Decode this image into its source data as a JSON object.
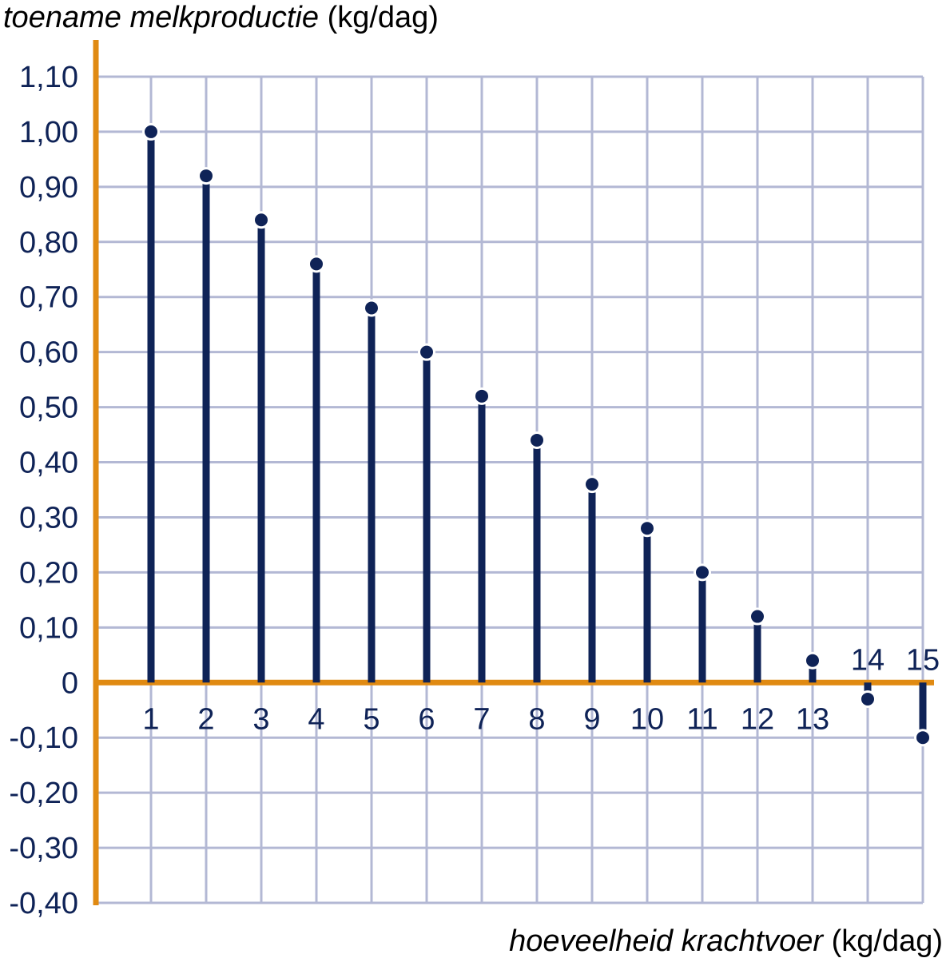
{
  "chart_data": {
    "type": "stem",
    "ylabel_italic": "toename melkproductie",
    "ylabel_unit": "(kg/dag)",
    "xlabel_italic": "hoeveelheid krachtvoer",
    "xlabel_unit": "(kg/dag)",
    "x": [
      1,
      2,
      3,
      4,
      5,
      6,
      7,
      8,
      9,
      10,
      11,
      12,
      13,
      14,
      15
    ],
    "values": [
      1.0,
      0.92,
      0.84,
      0.76,
      0.68,
      0.6,
      0.52,
      0.44,
      0.36,
      0.28,
      0.2,
      0.12,
      0.04,
      -0.03,
      -0.1
    ],
    "xlim": [
      0,
      15
    ],
    "ylim": [
      -0.4,
      1.1
    ],
    "y_ticks": [
      1.1,
      1.0,
      0.9,
      0.8,
      0.7,
      0.6,
      0.5,
      0.4,
      0.3,
      0.2,
      0.1,
      0,
      -0.1,
      -0.2,
      -0.3,
      -0.4
    ],
    "y_tick_labels": [
      "1,10",
      "1,00",
      "0,90",
      "0,80",
      "0,70",
      "0,60",
      "0,50",
      "0,40",
      "0,30",
      "0,20",
      "0,10",
      "0",
      "-0,10",
      "-0,20",
      "-0,30",
      "-0,40"
    ],
    "x_tick_labels": [
      "1",
      "2",
      "3",
      "4",
      "5",
      "6",
      "7",
      "8",
      "9",
      "10",
      "11",
      "12",
      "13",
      "14",
      "15"
    ],
    "grid": true,
    "colors": {
      "axis": "#e08a12",
      "grid": "#b3b8d4",
      "series": "#0f2357",
      "text": "#0f2357"
    }
  }
}
